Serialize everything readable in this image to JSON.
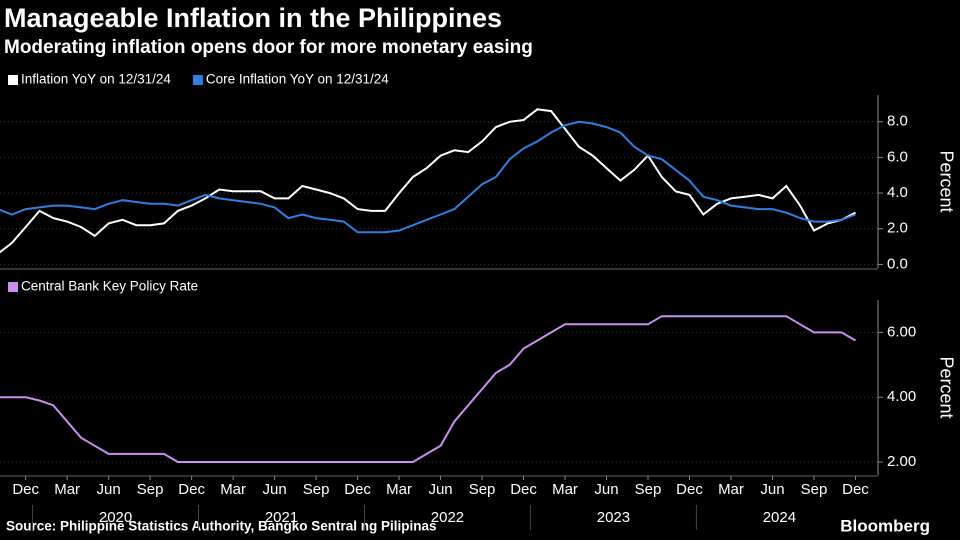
{
  "header": {
    "title": "Manageable Inflation in the Philippines",
    "subtitle": "Moderating inflation opens door for more monetary easing"
  },
  "chart_data": [
    {
      "type": "line",
      "y_label": "Percent",
      "x": [
        "2019-10",
        "2019-11",
        "2019-12",
        "2020-01",
        "2020-02",
        "2020-03",
        "2020-04",
        "2020-05",
        "2020-06",
        "2020-07",
        "2020-08",
        "2020-09",
        "2020-10",
        "2020-11",
        "2020-12",
        "2021-01",
        "2021-02",
        "2021-03",
        "2021-04",
        "2021-05",
        "2021-06",
        "2021-07",
        "2021-08",
        "2021-09",
        "2021-10",
        "2021-11",
        "2021-12",
        "2022-01",
        "2022-02",
        "2022-03",
        "2022-04",
        "2022-05",
        "2022-06",
        "2022-07",
        "2022-08",
        "2022-09",
        "2022-10",
        "2022-11",
        "2022-12",
        "2023-01",
        "2023-02",
        "2023-03",
        "2023-04",
        "2023-05",
        "2023-06",
        "2023-07",
        "2023-08",
        "2023-09",
        "2023-10",
        "2023-11",
        "2023-12",
        "2024-01",
        "2024-02",
        "2024-03",
        "2024-04",
        "2024-05",
        "2024-06",
        "2024-07",
        "2024-08",
        "2024-09",
        "2024-10",
        "2024-11",
        "2024-12"
      ],
      "series": [
        {
          "name": "Inflation YoY on 12/31/24",
          "color": "#ffffff",
          "values": [
            0.6,
            1.2,
            2.1,
            3.0,
            2.6,
            2.4,
            2.1,
            1.6,
            2.3,
            2.5,
            2.2,
            2.2,
            2.3,
            3.0,
            3.3,
            3.7,
            4.2,
            4.1,
            4.1,
            4.1,
            3.7,
            3.7,
            4.4,
            4.2,
            4.0,
            3.7,
            3.1,
            3.0,
            3.0,
            4.0,
            4.9,
            5.4,
            6.1,
            6.4,
            6.3,
            6.9,
            7.7,
            8.0,
            8.1,
            8.7,
            8.6,
            7.6,
            6.6,
            6.1,
            5.4,
            4.7,
            5.3,
            6.1,
            4.9,
            4.1,
            3.9,
            2.8,
            3.4,
            3.7,
            3.8,
            3.9,
            3.7,
            4.4,
            3.3,
            1.9,
            2.3,
            2.5,
            2.9
          ]
        },
        {
          "name": "Core Inflation YoY on 12/31/24",
          "color": "#2f7fe0",
          "values": [
            3.1,
            2.8,
            3.1,
            3.2,
            3.3,
            3.3,
            3.2,
            3.1,
            3.4,
            3.6,
            3.5,
            3.4,
            3.4,
            3.3,
            3.6,
            3.9,
            3.7,
            3.6,
            3.5,
            3.4,
            3.2,
            2.6,
            2.8,
            2.6,
            2.5,
            2.4,
            1.8,
            1.8,
            1.8,
            1.9,
            2.2,
            2.5,
            2.8,
            3.1,
            3.8,
            4.5,
            4.9,
            5.9,
            6.5,
            6.9,
            7.4,
            7.8,
            8.0,
            7.9,
            7.7,
            7.4,
            6.6,
            6.1,
            5.9,
            5.3,
            4.7,
            3.8,
            3.6,
            3.3,
            3.2,
            3.1,
            3.1,
            2.9,
            2.6,
            2.4,
            2.4,
            2.5,
            2.8
          ]
        }
      ],
      "ylim": [
        -0.2,
        9.5
      ],
      "yticks": [
        {
          "value": 0,
          "label": "0.0"
        },
        {
          "value": 2,
          "label": "2.0"
        },
        {
          "value": 4,
          "label": "4.0"
        },
        {
          "value": 6,
          "label": "6.0"
        },
        {
          "value": 8,
          "label": "8.0"
        }
      ]
    },
    {
      "type": "line",
      "y_label": "Percent",
      "x": [
        "2019-10",
        "2019-11",
        "2019-12",
        "2020-01",
        "2020-02",
        "2020-03",
        "2020-04",
        "2020-05",
        "2020-06",
        "2020-07",
        "2020-08",
        "2020-09",
        "2020-10",
        "2020-11",
        "2020-12",
        "2021-01",
        "2021-02",
        "2021-03",
        "2021-04",
        "2021-05",
        "2021-06",
        "2021-07",
        "2021-08",
        "2021-09",
        "2021-10",
        "2021-11",
        "2021-12",
        "2022-01",
        "2022-02",
        "2022-03",
        "2022-04",
        "2022-05",
        "2022-06",
        "2022-07",
        "2022-08",
        "2022-09",
        "2022-10",
        "2022-11",
        "2022-12",
        "2023-01",
        "2023-02",
        "2023-03",
        "2023-04",
        "2023-05",
        "2023-06",
        "2023-07",
        "2023-08",
        "2023-09",
        "2023-10",
        "2023-11",
        "2023-12",
        "2024-01",
        "2024-02",
        "2024-03",
        "2024-04",
        "2024-05",
        "2024-06",
        "2024-07",
        "2024-08",
        "2024-09",
        "2024-10",
        "2024-11",
        "2024-12"
      ],
      "series": [
        {
          "name": "Central Bank Key Policy Rate",
          "color": "#c88ff0",
          "values": [
            4.0,
            4.0,
            4.0,
            3.9,
            3.75,
            3.25,
            2.75,
            2.5,
            2.25,
            2.25,
            2.25,
            2.25,
            2.25,
            2.0,
            2.0,
            2.0,
            2.0,
            2.0,
            2.0,
            2.0,
            2.0,
            2.0,
            2.0,
            2.0,
            2.0,
            2.0,
            2.0,
            2.0,
            2.0,
            2.0,
            2.0,
            2.25,
            2.5,
            3.25,
            3.75,
            4.25,
            4.75,
            5.0,
            5.5,
            5.75,
            6.0,
            6.25,
            6.25,
            6.25,
            6.25,
            6.25,
            6.25,
            6.25,
            6.5,
            6.5,
            6.5,
            6.5,
            6.5,
            6.5,
            6.5,
            6.5,
            6.5,
            6.5,
            6.25,
            6.0,
            6.0,
            6.0,
            5.75
          ]
        }
      ],
      "ylim": [
        1.6,
        7.0
      ],
      "yticks": [
        {
          "value": 2,
          "label": "2.00"
        },
        {
          "value": 4,
          "label": "4.00"
        },
        {
          "value": 6,
          "label": "6.00"
        }
      ],
      "xticks": [
        {
          "value": "2019-12",
          "label": "Dec"
        },
        {
          "value": "2020-03",
          "label": "Mar"
        },
        {
          "value": "2020-06",
          "label": "Jun"
        },
        {
          "value": "2020-09",
          "label": "Sep"
        },
        {
          "value": "2020-12",
          "label": "Dec"
        },
        {
          "value": "2021-03",
          "label": "Mar"
        },
        {
          "value": "2021-06",
          "label": "Jun"
        },
        {
          "value": "2021-09",
          "label": "Sep"
        },
        {
          "value": "2021-12",
          "label": "Dec"
        },
        {
          "value": "2022-03",
          "label": "Mar"
        },
        {
          "value": "2022-06",
          "label": "Jun"
        },
        {
          "value": "2022-09",
          "label": "Sep"
        },
        {
          "value": "2022-12",
          "label": "Dec"
        },
        {
          "value": "2023-03",
          "label": "Mar"
        },
        {
          "value": "2023-06",
          "label": "Jun"
        },
        {
          "value": "2023-09",
          "label": "Sep"
        },
        {
          "value": "2023-12",
          "label": "Dec"
        },
        {
          "value": "2024-03",
          "label": "Mar"
        },
        {
          "value": "2024-06",
          "label": "Jun"
        },
        {
          "value": "2024-09",
          "label": "Sep"
        },
        {
          "value": "2024-12",
          "label": "Dec"
        }
      ],
      "xyears": [
        "2020",
        "2021",
        "2022",
        "2023",
        "2024"
      ]
    }
  ],
  "footer": {
    "source": "Source: Philippine Statistics Authority, Bangko Sentral ng Pilipinas",
    "logo": "Bloomberg"
  }
}
